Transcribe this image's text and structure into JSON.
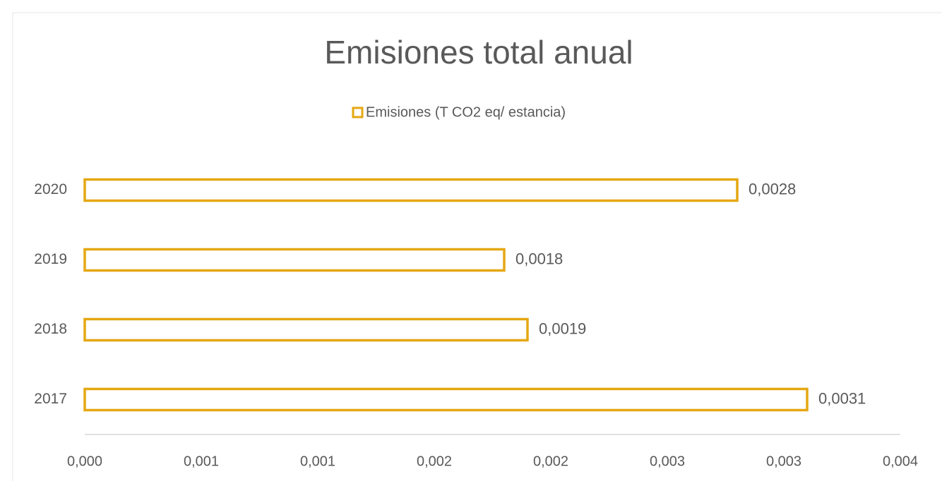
{
  "chart_data": {
    "type": "hbar",
    "title": "Emisiones total anual",
    "categories": [
      "2017",
      "2018",
      "2019",
      "2020"
    ],
    "series": [
      {
        "name": "Emisiones (T CO2 eq/ estancia)",
        "color": "#e5a712",
        "values": [
          0.0031,
          0.0019,
          0.0018,
          0.0028
        ],
        "value_labels": [
          "0,0031",
          "0,0019",
          "0,0018",
          "0,0028"
        ]
      }
    ],
    "xlim": [
      0,
      0.0035
    ],
    "xticks": [
      {
        "value": 0,
        "label": "0,000"
      },
      {
        "value": 0.0005,
        "label": "0,001"
      },
      {
        "value": 0.001,
        "label": "0,001"
      },
      {
        "value": 0.0015,
        "label": "0,002"
      },
      {
        "value": 0.002,
        "label": "0,002"
      },
      {
        "value": 0.0025,
        "label": "0,003"
      },
      {
        "value": 0.003,
        "label": "0,003"
      },
      {
        "value": 0.0035,
        "label": "0,004"
      }
    ],
    "legend": "top"
  }
}
